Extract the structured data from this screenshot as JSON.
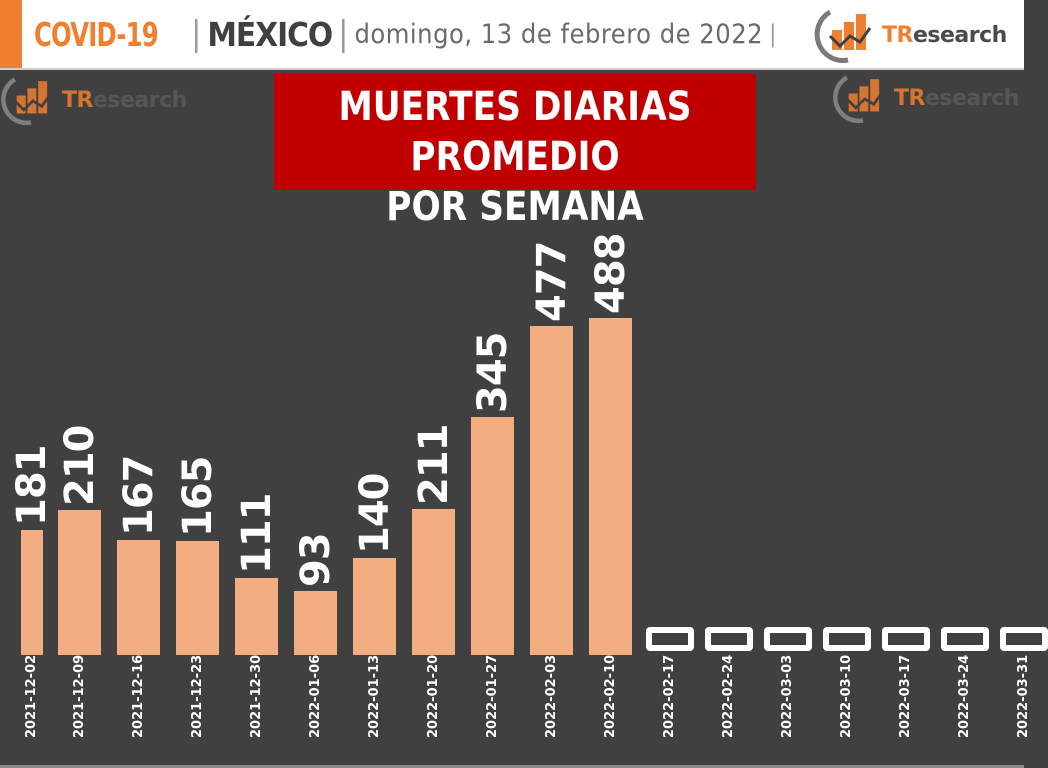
{
  "header": {
    "title_covid": "COVID-19",
    "separator": "|",
    "title_country": "MÉXICO",
    "date": "domingo, 13 de febrero de 2022",
    "date_separator": "|",
    "brand_t": "TR",
    "brand_rest": "esearch"
  },
  "watermarks": [
    {
      "brand_t": "TR",
      "brand_rest": "esearch"
    },
    {
      "brand_t": "TR",
      "brand_rest": "esearch"
    }
  ],
  "chart_title": {
    "line1": "MUERTES DIARIAS PROMEDIO",
    "line2": "POR SEMANA"
  },
  "colors": {
    "background": "#404040",
    "bar": "#f2ad80",
    "title_bg": "#c00000",
    "accent": "#f07f2f"
  },
  "chart_data": {
    "type": "bar",
    "title": "MUERTES DIARIAS PROMEDIO POR SEMANA",
    "subtitle": "COVID-19 | MÉXICO | domingo, 13 de febrero de 2022",
    "xlabel": "",
    "ylabel": "",
    "categories": [
      "2021-12-02",
      "2021-12-09",
      "2021-12-16",
      "2021-12-23",
      "2021-12-30",
      "2022-01-06",
      "2022-01-13",
      "2022-01-20",
      "2022-01-27",
      "2022-02-03",
      "2022-02-10",
      "2022-02-17",
      "2022-02-24",
      "2022-03-03",
      "2022-03-10",
      "2022-03-17",
      "2022-03-24",
      "2022-03-31"
    ],
    "values": [
      181,
      210,
      167,
      165,
      111,
      93,
      140,
      211,
      345,
      477,
      488,
      0,
      0,
      0,
      0,
      0,
      0,
      0
    ],
    "value_labels": [
      "181",
      "210",
      "167",
      "165",
      "111",
      "93",
      "140",
      "211",
      "345",
      "477",
      "488",
      "0",
      "0",
      "0",
      "0",
      "0",
      "0",
      "0"
    ],
    "grid": false,
    "legend": "none",
    "data_labels": true
  }
}
